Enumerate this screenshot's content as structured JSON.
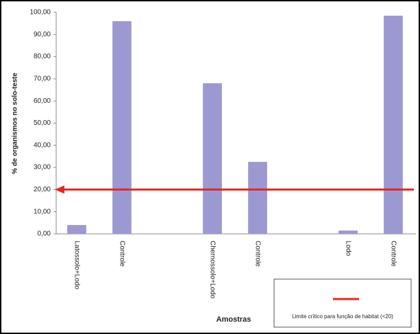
{
  "chart_data": {
    "type": "bar",
    "y_label": "% de organismos no solo-teste",
    "x_label": "Amostras",
    "categories": [
      "Latossolo+Lodo",
      "Controle",
      null,
      "Chernossolo+Lodo",
      "Controle",
      null,
      "Lodo",
      "Controle"
    ],
    "values": [
      4,
      96,
      null,
      68,
      32.5,
      null,
      1.5,
      98.5
    ],
    "color": "#9c98d2",
    "ylim": [
      0,
      100
    ],
    "yticks": [
      {
        "value": 0,
        "label": "0,00"
      },
      {
        "value": 10,
        "label": "10,00"
      },
      {
        "value": 20,
        "label": "20,00"
      },
      {
        "value": 30,
        "label": "30,00"
      },
      {
        "value": 40,
        "label": "40,00"
      },
      {
        "value": 50,
        "label": "50,00"
      },
      {
        "value": 60,
        "label": "60,00"
      },
      {
        "value": 70,
        "label": "70,00"
      },
      {
        "value": 80,
        "label": "80,00"
      },
      {
        "value": 90,
        "label": "90,00"
      },
      {
        "value": 100,
        "label": "100,00"
      }
    ],
    "grid": false,
    "reference_line": {
      "value": 20,
      "label": "Limite crítico para função de habitat (<20)",
      "color": "#e8261e"
    }
  }
}
